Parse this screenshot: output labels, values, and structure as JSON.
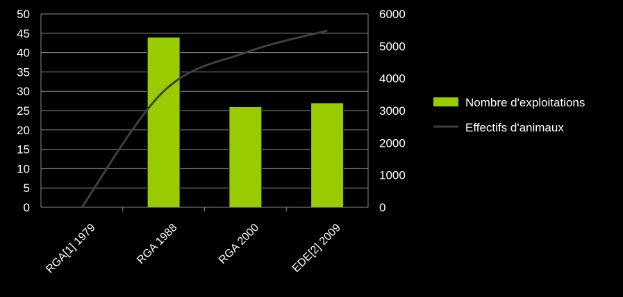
{
  "chart_data": {
    "type": "bar",
    "categories": [
      "RGA[1] 1979",
      "RGA 1988",
      "RGA 2000",
      "EDE[2] 2009"
    ],
    "series": [
      {
        "name": "Nombre d'exploitations",
        "type": "bar",
        "axis": "left",
        "color": "#99cc00",
        "values": [
          0,
          44,
          26,
          27
        ]
      },
      {
        "name": "Effectifs d'animaux",
        "type": "line",
        "axis": "right",
        "color": "#404040",
        "values": [
          0,
          3600,
          4800,
          5480
        ]
      }
    ],
    "y_left": {
      "min": 0,
      "max": 50,
      "ticks": [
        0,
        5,
        10,
        15,
        20,
        25,
        30,
        35,
        40,
        45,
        50
      ]
    },
    "y_right": {
      "min": 0,
      "max": 6000,
      "ticks": [
        0,
        1000,
        2000,
        3000,
        4000,
        5000,
        6000
      ]
    },
    "grid": true,
    "legend_position": "right",
    "title": "",
    "xlabel": "",
    "ylabel": ""
  }
}
